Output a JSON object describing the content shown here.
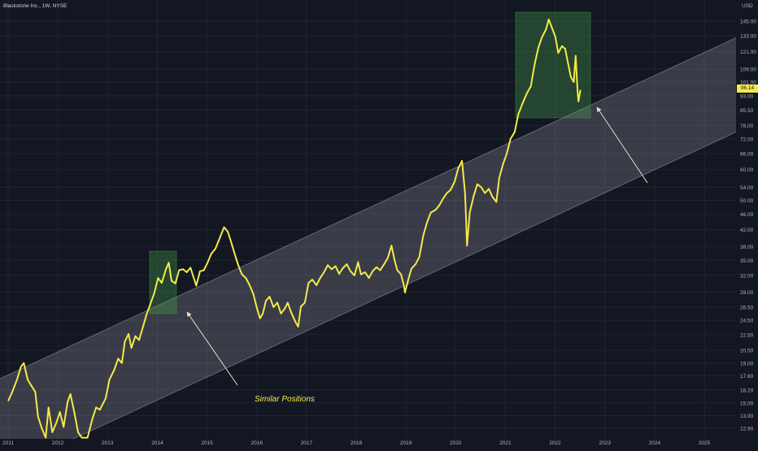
{
  "header": {
    "symbol": "Blackstone Inc., 1W, NYSE",
    "currency": "USD"
  },
  "annotation": {
    "text": "Similar Positions"
  },
  "current_price_label": "96.14",
  "colors": {
    "background": "#131722",
    "price_line": "#f5e94a",
    "channel": "#d1d4dc",
    "highlight": "#4caf50",
    "arrow": "#e6e3c4"
  },
  "chart_data": {
    "type": "line",
    "title": "",
    "xlabel": "",
    "ylabel": "",
    "y_scale": "log",
    "ylim": [
      12.3,
      152
    ],
    "xlim": [
      "2011-01",
      "2025-08"
    ],
    "grid": true,
    "x_ticks": [
      "2011",
      "2012",
      "2013",
      "2014",
      "2015",
      "2016",
      "2017",
      "2018",
      "2019",
      "2020",
      "2021",
      "2022",
      "2023",
      "2024",
      "2025"
    ],
    "y_ticks": [
      "12.90",
      "13.90",
      "15.00",
      "16.20",
      "17.60",
      "19.00",
      "20.50",
      "22.50",
      "24.50",
      "26.50",
      "29.00",
      "32.00",
      "35.00",
      "38.00",
      "42.00",
      "46.00",
      "50.00",
      "54.00",
      "60.00",
      "66.00",
      "72.00",
      "78.00",
      "85.50",
      "93.00",
      "101.00",
      "109.00",
      "121.00",
      "133.00",
      "145.00"
    ],
    "series": [
      {
        "name": "",
        "points": [
          [
            "2011-01-03",
            15.2
          ],
          [
            "2011-02-07",
            16.2
          ],
          [
            "2011-03-07",
            17.3
          ],
          [
            "2011-04-04",
            18.6
          ],
          [
            "2011-04-25",
            19.0
          ],
          [
            "2011-05-23",
            17.2
          ],
          [
            "2011-06-20",
            16.6
          ],
          [
            "2011-07-18",
            16.0
          ],
          [
            "2011-08-08",
            13.8
          ],
          [
            "2011-09-05",
            12.9
          ],
          [
            "2011-10-03",
            12.2
          ],
          [
            "2011-10-24",
            14.6
          ],
          [
            "2011-11-21",
            12.6
          ],
          [
            "2011-12-19",
            13.3
          ],
          [
            "2012-01-16",
            14.2
          ],
          [
            "2012-02-13",
            13.0
          ],
          [
            "2012-03-12",
            15.1
          ],
          [
            "2012-04-02",
            15.8
          ],
          [
            "2012-04-30",
            14.2
          ],
          [
            "2012-05-28",
            12.6
          ],
          [
            "2012-06-25",
            12.2
          ],
          [
            "2012-08-06",
            12.2
          ],
          [
            "2012-09-10",
            13.6
          ],
          [
            "2012-10-08",
            14.6
          ],
          [
            "2012-11-05",
            14.4
          ],
          [
            "2012-12-17",
            15.4
          ],
          [
            "2013-01-14",
            17.2
          ],
          [
            "2013-02-18",
            18.2
          ],
          [
            "2013-03-18",
            19.5
          ],
          [
            "2013-04-15",
            19.0
          ],
          [
            "2013-05-06",
            21.6
          ],
          [
            "2013-06-03",
            22.6
          ],
          [
            "2013-06-24",
            20.8
          ],
          [
            "2013-07-22",
            22.3
          ],
          [
            "2013-08-19",
            21.8
          ],
          [
            "2013-09-16",
            23.5
          ],
          [
            "2013-10-14",
            25.4
          ],
          [
            "2013-11-11",
            27.0
          ],
          [
            "2013-12-09",
            28.8
          ],
          [
            "2014-01-06",
            31.5
          ],
          [
            "2014-02-03",
            30.6
          ],
          [
            "2014-03-03",
            33.2
          ],
          [
            "2014-03-24",
            34.5
          ],
          [
            "2014-04-14",
            31.0
          ],
          [
            "2014-05-12",
            30.5
          ],
          [
            "2014-06-09",
            33.0
          ],
          [
            "2014-07-07",
            33.2
          ],
          [
            "2014-08-04",
            32.6
          ],
          [
            "2014-09-01",
            33.5
          ],
          [
            "2014-10-13",
            30.1
          ],
          [
            "2014-11-10",
            32.8
          ],
          [
            "2014-12-08",
            33.0
          ],
          [
            "2015-01-05",
            34.5
          ],
          [
            "2015-02-02",
            36.4
          ],
          [
            "2015-03-02",
            37.5
          ],
          [
            "2015-04-06",
            40.2
          ],
          [
            "2015-05-04",
            42.6
          ],
          [
            "2015-06-01",
            41.5
          ],
          [
            "2015-06-22",
            39.4
          ],
          [
            "2015-07-20",
            36.5
          ],
          [
            "2015-08-17",
            34.0
          ],
          [
            "2015-09-14",
            32.2
          ],
          [
            "2015-10-12",
            31.5
          ],
          [
            "2015-11-09",
            30.2
          ],
          [
            "2015-12-07",
            28.6
          ],
          [
            "2016-01-04",
            26.2
          ],
          [
            "2016-01-25",
            24.8
          ],
          [
            "2016-02-15",
            25.5
          ],
          [
            "2016-03-07",
            27.5
          ],
          [
            "2016-04-04",
            28.2
          ],
          [
            "2016-05-02",
            26.5
          ],
          [
            "2016-05-30",
            27.2
          ],
          [
            "2016-06-27",
            25.5
          ],
          [
            "2016-07-25",
            26.3
          ],
          [
            "2016-08-15",
            27.2
          ],
          [
            "2016-09-12",
            25.6
          ],
          [
            "2016-10-10",
            24.3
          ],
          [
            "2016-10-31",
            23.6
          ],
          [
            "2016-11-21",
            26.6
          ],
          [
            "2016-12-19",
            27.2
          ],
          [
            "2017-01-16",
            30.6
          ],
          [
            "2017-02-13",
            31.2
          ],
          [
            "2017-03-13",
            30.2
          ],
          [
            "2017-04-10",
            31.5
          ],
          [
            "2017-05-08",
            32.6
          ],
          [
            "2017-06-05",
            34.0
          ],
          [
            "2017-07-03",
            33.2
          ],
          [
            "2017-07-31",
            33.8
          ],
          [
            "2017-08-28",
            32.3
          ],
          [
            "2017-09-25",
            33.4
          ],
          [
            "2017-10-23",
            34.2
          ],
          [
            "2017-11-20",
            32.8
          ],
          [
            "2017-12-18",
            32.0
          ],
          [
            "2018-01-15",
            34.6
          ],
          [
            "2018-02-05",
            32.2
          ],
          [
            "2018-03-05",
            32.6
          ],
          [
            "2018-04-02",
            31.5
          ],
          [
            "2018-04-30",
            32.8
          ],
          [
            "2018-05-28",
            33.6
          ],
          [
            "2018-06-25",
            33.0
          ],
          [
            "2018-07-23",
            34.2
          ],
          [
            "2018-08-20",
            35.5
          ],
          [
            "2018-09-17",
            38.2
          ],
          [
            "2018-10-08",
            35.1
          ],
          [
            "2018-10-29",
            33.0
          ],
          [
            "2018-11-26",
            32.2
          ],
          [
            "2018-12-17",
            30.1
          ],
          [
            "2018-12-24",
            28.9
          ],
          [
            "2019-01-21",
            31.5
          ],
          [
            "2019-02-11",
            33.3
          ],
          [
            "2019-03-11",
            34.2
          ],
          [
            "2019-04-08",
            35.7
          ],
          [
            "2019-05-06",
            40.5
          ],
          [
            "2019-06-03",
            43.8
          ],
          [
            "2019-07-01",
            46.5
          ],
          [
            "2019-08-05",
            47.2
          ],
          [
            "2019-09-02",
            48.5
          ],
          [
            "2019-09-30",
            50.5
          ],
          [
            "2019-10-28",
            52.2
          ],
          [
            "2019-11-25",
            53.2
          ],
          [
            "2019-12-23",
            55.8
          ],
          [
            "2020-01-20",
            60.5
          ],
          [
            "2020-02-17",
            63.2
          ],
          [
            "2020-03-09",
            52.2
          ],
          [
            "2020-03-16",
            45.2
          ],
          [
            "2020-03-23",
            38.2
          ],
          [
            "2020-04-13",
            46.5
          ],
          [
            "2020-05-11",
            51.2
          ],
          [
            "2020-06-08",
            55.0
          ],
          [
            "2020-07-06",
            54.0
          ],
          [
            "2020-08-03",
            52.2
          ],
          [
            "2020-08-31",
            53.5
          ],
          [
            "2020-09-28",
            51.0
          ],
          [
            "2020-10-26",
            49.5
          ],
          [
            "2020-11-16",
            57.0
          ],
          [
            "2020-12-14",
            62.0
          ],
          [
            "2021-01-11",
            66.0
          ],
          [
            "2021-02-08",
            72.0
          ],
          [
            "2021-03-08",
            75.0
          ],
          [
            "2021-04-05",
            83.5
          ],
          [
            "2021-05-03",
            88.5
          ],
          [
            "2021-06-07",
            94.5
          ],
          [
            "2021-07-05",
            98.5
          ],
          [
            "2021-08-02",
            112.0
          ],
          [
            "2021-08-30",
            124.0
          ],
          [
            "2021-09-27",
            132.0
          ],
          [
            "2021-10-25",
            138.0
          ],
          [
            "2021-11-15",
            146.5
          ],
          [
            "2021-12-06",
            140.0
          ],
          [
            "2022-01-03",
            132.0
          ],
          [
            "2022-01-24",
            120.0
          ],
          [
            "2022-02-21",
            125.0
          ],
          [
            "2022-03-14",
            123.0
          ],
          [
            "2022-04-04",
            113.0
          ],
          [
            "2022-04-25",
            104.0
          ],
          [
            "2022-05-16",
            101.0
          ],
          [
            "2022-05-30",
            118.0
          ],
          [
            "2022-06-13",
            96.0
          ],
          [
            "2022-06-20",
            90.0
          ],
          [
            "2022-07-04",
            96.14
          ]
        ]
      }
    ],
    "annotations": [
      {
        "text": "Similar Positions"
      }
    ]
  }
}
